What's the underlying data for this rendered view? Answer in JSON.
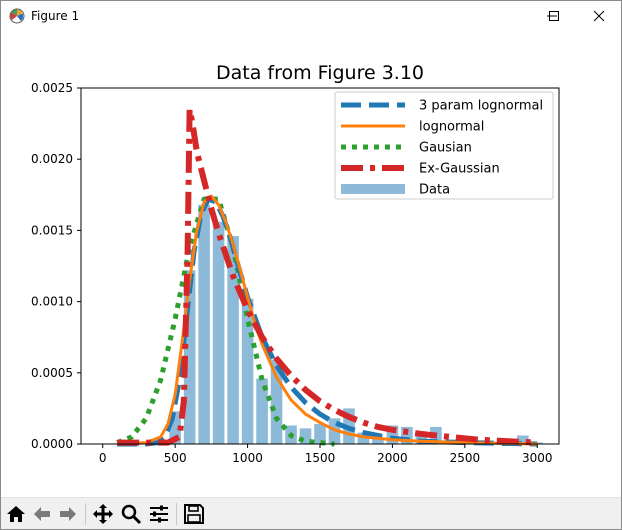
{
  "window": {
    "title": "Figure 1",
    "minimize_symbol": "—",
    "close_symbol": "✕"
  },
  "toolbar": {
    "buttons": [
      {
        "name": "home-icon",
        "interactable": true
      },
      {
        "name": "back-arrow-icon",
        "interactable": true
      },
      {
        "name": "forward-arrow-icon",
        "interactable": true
      },
      {
        "name": "pan-icon",
        "interactable": true
      },
      {
        "name": "zoom-icon",
        "interactable": true
      },
      {
        "name": "subplots-config-icon",
        "interactable": true
      },
      {
        "name": "save-icon",
        "interactable": true
      }
    ]
  },
  "colors": {
    "three_param": "#1f77b4",
    "lognormal": "#ff7f0e",
    "gaussian": "#2ca02c",
    "ex_gaussian": "#d62728",
    "bars": "#8ebad9"
  },
  "chart_data": {
    "type": "bar",
    "title": "Data from Figure 3.10",
    "xlabel": "",
    "ylabel": "",
    "xlim": [
      -150,
      3150
    ],
    "ylim": [
      0,
      0.0025
    ],
    "xticks": [
      "0",
      "500",
      "1000",
      "1500",
      "2000",
      "2500",
      "3000"
    ],
    "xtick_values": [
      0,
      500,
      1000,
      1500,
      2000,
      2500,
      3000
    ],
    "yticks": [
      "0.0000",
      "0.0005",
      "0.0010",
      "0.0015",
      "0.0020",
      "0.0025"
    ],
    "ytick_values": [
      0,
      0.0005,
      0.001,
      0.0015,
      0.002,
      0.0025
    ],
    "legend_position": "top-right",
    "legend": [
      "3 param lognormal",
      "lognormal",
      "Gausian",
      "Ex-Gaussian",
      "Data"
    ],
    "bars": {
      "name": "Data",
      "bin_width": 100,
      "bar_width": 80,
      "centers": [
        300,
        400,
        500,
        600,
        700,
        800,
        900,
        1000,
        1100,
        1200,
        1300,
        1400,
        1500,
        1600,
        1700,
        1800,
        1900,
        2000,
        2100,
        2200,
        2300,
        2400,
        2500,
        2600,
        2700,
        2800,
        2900,
        3000
      ],
      "values": [
        1e-05,
        2e-05,
        0.00023,
        0.00122,
        0.00168,
        0.00156,
        0.00146,
        0.00102,
        0.00046,
        0.00059,
        0.00013,
        0.00011,
        0.00014,
        0.00018,
        0.00025,
        8e-05,
        4e-05,
        0.00013,
        0.00012,
        8e-05,
        0.00012,
        3e-05,
        3e-05,
        2e-05,
        1e-05,
        1e-05,
        6e-05,
        1e-05
      ]
    },
    "series": [
      {
        "name": "3 param lognormal",
        "style": "dashed",
        "x": [
          100,
          300,
          380,
          430,
          480,
          530,
          580,
          630,
          680,
          730,
          780,
          830,
          880,
          950,
          1000,
          1100,
          1200,
          1300,
          1400,
          1500,
          1600,
          1700,
          1800,
          1900,
          2000,
          2200,
          2500,
          3000
        ],
        "y": [
          0,
          0,
          1e-05,
          5e-05,
          0.00018,
          0.00045,
          0.0009,
          0.00135,
          0.00162,
          0.00172,
          0.0017,
          0.0016,
          0.00145,
          0.0012,
          0.00103,
          0.00075,
          0.00055,
          0.0004,
          0.00029,
          0.00021,
          0.00015,
          0.00011,
          8e-05,
          6e-05,
          4e-05,
          2e-05,
          1e-05,
          0
        ]
      },
      {
        "name": "lognormal",
        "style": "solid",
        "x": [
          100,
          300,
          400,
          450,
          500,
          550,
          600,
          650,
          700,
          750,
          800,
          850,
          900,
          950,
          1000,
          1050,
          1100,
          1200,
          1300,
          1400,
          1500,
          1600,
          1700,
          1800,
          1900,
          2000,
          2200,
          2500,
          3000
        ],
        "y": [
          0,
          1e-05,
          5e-05,
          0.00014,
          0.00035,
          0.00073,
          0.00115,
          0.0015,
          0.0017,
          0.00174,
          0.00168,
          0.00156,
          0.0014,
          0.00122,
          0.00103,
          0.00085,
          0.0007,
          0.00047,
          0.00031,
          0.00021,
          0.00015,
          0.0001,
          7e-05,
          5e-05,
          4e-05,
          3e-05,
          2e-05,
          1e-05,
          0
        ]
      },
      {
        "name": "Gausian",
        "style": "dotted",
        "x": [
          100,
          200,
          300,
          400,
          500,
          600,
          700,
          800,
          900,
          1000,
          1100,
          1200,
          1300,
          1400,
          1500,
          1600
        ],
        "y": [
          1e-05,
          5e-05,
          0.00018,
          0.00045,
          0.00088,
          0.00138,
          0.00172,
          0.00172,
          0.00138,
          0.00088,
          0.00045,
          0.00018,
          6e-05,
          2e-05,
          1e-05,
          0
        ]
      },
      {
        "name": "Ex-Gaussian",
        "style": "dashdot",
        "x": [
          100,
          450,
          530,
          560,
          585,
          600,
          620,
          650,
          700,
          750,
          800,
          900,
          1000,
          1100,
          1200,
          1300,
          1400,
          1500,
          1600,
          1700,
          1800,
          1900,
          2000,
          2200,
          2400,
          2600,
          2800,
          3000
        ],
        "y": [
          1e-05,
          1e-05,
          5e-05,
          0.0003,
          0.0013,
          0.00235,
          0.00225,
          0.00205,
          0.00185,
          0.00165,
          0.00148,
          0.00118,
          0.00094,
          0.00075,
          0.0006,
          0.00048,
          0.00038,
          0.0003,
          0.00024,
          0.00019,
          0.00015,
          0.00012,
          0.0001,
          7e-05,
          5e-05,
          3e-05,
          2e-05,
          1e-05
        ]
      }
    ]
  }
}
